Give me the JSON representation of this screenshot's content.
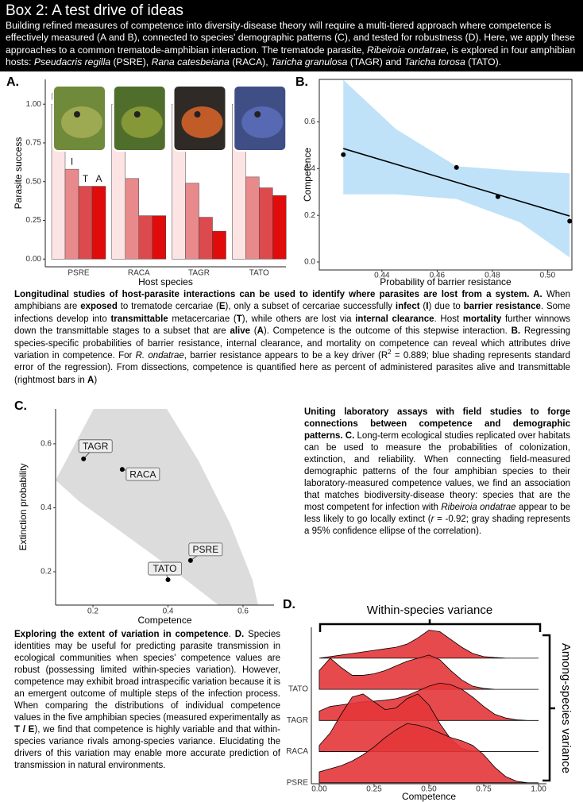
{
  "header": {
    "title": "Box 2: A test drive of ideas",
    "intro": [
      {
        "text": "Building refined measures of competence into diversity-disease theory will require a multi-tiered approach where competence is effectively measured (A and B), connected to species' demographic patterns (C), and tested for robustness (D). Here, we apply these approaches to a common trematode-amphibian interaction. The trematode parasite, "
      },
      {
        "text": "Ribeiroia ondatrae",
        "style": "i"
      },
      {
        "text": ", is explored in four amphibian hosts: "
      },
      {
        "text": "Pseudacris regilla",
        "style": "i"
      },
      {
        "text": " (PSRE), "
      },
      {
        "text": "Rana catesbeiana",
        "style": "i"
      },
      {
        "text": " (RACA), "
      },
      {
        "text": "Taricha granulosa",
        "style": "i"
      },
      {
        "text": " (TAGR) and "
      },
      {
        "text": "Taricha torosa",
        "style": "i"
      },
      {
        "text": " (TATO)."
      }
    ]
  },
  "chart_data": [
    {
      "type": "bar",
      "label": "A.",
      "xlabel": "Host species",
      "ylabel": "Parasite success",
      "categories": [
        "PSRE",
        "RACA",
        "TAGR",
        "TATO"
      ],
      "series": [
        {
          "name": "E",
          "color": "#fde4e4",
          "values": [
            1.0,
            1.0,
            1.0,
            1.0
          ]
        },
        {
          "name": "I",
          "color": "#e8898c",
          "values": [
            0.58,
            0.52,
            0.49,
            0.53
          ]
        },
        {
          "name": "T",
          "color": "#dc4a4e",
          "values": [
            0.47,
            0.28,
            0.27,
            0.46
          ]
        },
        {
          "name": "A",
          "color": "#e00b0b",
          "values": [
            0.47,
            0.28,
            0.18,
            0.41
          ]
        }
      ],
      "ylim": [
        -0.05,
        1.16
      ],
      "yticks": [
        {
          "value": 0,
          "label": "0.00"
        },
        0.25,
        {
          "value": 0.5,
          "label": "0.50"
        },
        0.75,
        {
          "value": 1,
          "label": "1.00"
        }
      ]
    },
    {
      "type": "scatter",
      "label": "B.",
      "xlabel": "Probability of barrier resistance",
      "ylabel": "Competence",
      "x": [
        0.426,
        0.467,
        0.482,
        0.508
      ],
      "values": [
        0.46,
        0.405,
        0.28,
        0.175
      ],
      "color": "#000000",
      "fit": {
        "x": [
          0.426,
          0.508
        ],
        "values": [
          0.486,
          0.197
        ],
        "color": "#000000"
      },
      "band": {
        "x": [
          0.426,
          0.445,
          0.467,
          0.49,
          0.508
        ],
        "upper": [
          0.78,
          0.57,
          0.41,
          0.39,
          0.38
        ],
        "lower": [
          0.29,
          0.29,
          0.27,
          0.17,
          0.02
        ],
        "color": "#bfe2f8"
      },
      "xlim": [
        0.4173,
        0.5088
      ],
      "ylim": [
        -0.034,
        0.782
      ],
      "xticks": [
        0.44,
        0.46,
        0.48,
        {
          "value": 0.5,
          "label": "0.50"
        }
      ],
      "yticks": [
        {
          "value": 0,
          "label": "0.0"
        },
        0.2,
        0.4,
        0.6
      ]
    },
    {
      "type": "scatter",
      "label": "C.",
      "xlabel": "Competence",
      "ylabel": "Extinction probability",
      "categories": [
        "TAGR",
        "RACA",
        "PSRE",
        "TATO"
      ],
      "x": [
        0.175,
        0.278,
        0.46,
        0.4
      ],
      "values": [
        0.553,
        0.52,
        0.235,
        0.175
      ],
      "color": "#000000",
      "band": {
        "x": [
          0.1005,
          0.202,
          0.397,
          0.481,
          0.566,
          0.625,
          0.64,
          0.534,
          0.407,
          0.27,
          0.164
        ],
        "y": [
          0.486,
          0.709,
          0.709,
          0.548,
          0.349,
          0.175,
          0.096,
          0.096,
          0.212,
          0.329,
          0.419
        ],
        "color": "#dcdcdc"
      },
      "xlim": [
        0.1005,
        0.6825
      ],
      "ylim": [
        0.0957,
        0.709
      ],
      "xticks": [
        0.2,
        0.4,
        0.6
      ],
      "yticks": [
        0.2,
        0.4,
        0.6
      ]
    },
    {
      "type": "ridgeline",
      "label": "D.",
      "xlabel": "Competence",
      "annotations": [
        "Within-species variance",
        "Among-species variance"
      ],
      "categories": [
        "PSRE",
        "RACA",
        "TAGR",
        "TATO",
        null
      ],
      "color": "#e4363a",
      "x": [
        0,
        0.05,
        0.1,
        0.15,
        0.2,
        0.25,
        0.3,
        0.35,
        0.4,
        0.45,
        0.5,
        0.55,
        0.6,
        0.65,
        0.7,
        0.75,
        0.8,
        0.85,
        0.9,
        0.95,
        1.0
      ],
      "densities": [
        [
          0.35,
          0.45,
          0.55,
          0.7,
          0.9,
          1.15,
          1.45,
          1.7,
          1.9,
          1.85,
          1.75,
          1.6,
          1.45,
          1.35,
          1.2,
          0.9,
          0.5,
          0.2,
          0.05,
          0,
          0
        ],
        [
          0.2,
          0.6,
          1.2,
          1.75,
          1.85,
          1.6,
          1.35,
          1.4,
          1.7,
          1.85,
          1.5,
          0.9,
          0.4,
          0.1,
          0.02,
          0,
          0,
          0,
          0,
          0,
          0
        ],
        [
          0.3,
          0.45,
          0.5,
          0.55,
          0.6,
          0.62,
          0.65,
          0.7,
          0.8,
          0.95,
          1.1,
          1.2,
          1.15,
          1.0,
          0.75,
          0.45,
          0.2,
          0.08,
          0.02,
          0,
          0
        ],
        [
          0.6,
          1.0,
          0.7,
          0.45,
          0.45,
          0.5,
          0.6,
          0.75,
          0.9,
          1.0,
          1.1,
          0.95,
          0.6,
          0.3,
          0.1,
          0.03,
          0,
          0,
          0,
          0,
          0
        ],
        [
          0,
          0.05,
          0.1,
          0.15,
          0.2,
          0.25,
          0.3,
          0.35,
          0.45,
          0.65,
          0.9,
          0.85,
          0.6,
          0.35,
          0.15,
          0.05,
          0.02,
          0,
          0,
          0,
          0
        ]
      ],
      "xlim": [
        -0.036,
        1.036
      ],
      "ylim": [
        -0.03,
        4.99
      ],
      "xticks": [
        {
          "value": 0,
          "label": "0.00"
        },
        0.25,
        {
          "value": 0.5,
          "label": "0.50"
        },
        0.75,
        {
          "value": 1,
          "label": "1.00"
        }
      ]
    }
  ],
  "captions": [
    [
      {
        "text": "Longitudinal studies of host-parasite interactions can be used to identify where parasites are lost from a system. A.",
        "style": "b"
      },
      {
        "text": " When amphibians are "
      },
      {
        "text": "exposed",
        "style": "b"
      },
      {
        "text": " to trematode cercariae ("
      },
      {
        "text": "E",
        "style": "b"
      },
      {
        "text": "), only a subset of cercariae successfully "
      },
      {
        "text": "infect",
        "style": "b"
      },
      {
        "text": " ("
      },
      {
        "text": "I",
        "style": "b"
      },
      {
        "text": ") due to "
      },
      {
        "text": "barrier resistance",
        "style": "b"
      },
      {
        "text": ". Some infections develop into "
      },
      {
        "text": "transmittable",
        "style": "b"
      },
      {
        "text": " metacercariae ("
      },
      {
        "text": "T",
        "style": "b"
      },
      {
        "text": "), while others are lost via "
      },
      {
        "text": "internal clearance",
        "style": "b"
      },
      {
        "text": ". Host "
      },
      {
        "text": "mortality",
        "style": "b"
      },
      {
        "text": " further winnows down the transmittable stages to a subset that are "
      },
      {
        "text": "alive",
        "style": "b"
      },
      {
        "text": " ("
      },
      {
        "text": "A",
        "style": "b"
      },
      {
        "text": "). Competence is the outcome of this stepwise interaction. "
      },
      {
        "text": "B.",
        "style": "b"
      },
      {
        "text": " Regressing species-specific probabilities of barrier resistance, internal clearance, and mortality on competence can reveal which attributes drive variation in competence. For "
      },
      {
        "text": "R. ondatrae",
        "style": "i"
      },
      {
        "text": ", barrier resistance appears to be a key driver (R"
      },
      {
        "text": "2",
        "style": "sup"
      },
      {
        "text": " = 0.889; blue shading represents standard error of the regression). From dissections, competence is quantified here as percent of administered parasites alive and transmittable (rightmost bars in "
      },
      {
        "text": "A",
        "style": "b"
      },
      {
        "text": ")"
      }
    ],
    [
      {
        "text": "Uniting laboratory assays with field studies to forge connections between competence and demographic patterns. C.",
        "style": "b"
      },
      {
        "text": " Long-term ecological studies replicated over habitats can be used to measure the probabilities of colonization, extinction, and reliability. When connecting field-measured demographic patterns of the four amphibian species to their laboratory-measured competence values, we find an association that matches biodiversity-disease theory: species that are the most competent for infection with "
      },
      {
        "text": "Ribeiroia ondatrae",
        "style": "i"
      },
      {
        "text": " appear to be less likely to go locally extinct ("
      },
      {
        "text": "r",
        "style": "i"
      },
      {
        "text": " = -0.92; gray shading represents a 95% confidence ellipse of the correlation)."
      }
    ],
    [
      {
        "text": "Exploring the extent of variation in competence",
        "style": "b"
      },
      {
        "text": ". "
      },
      {
        "text": "D.",
        "style": "b"
      },
      {
        "text": " Species identities may be useful for predicting parasite transmission in ecological communities when species' competence values are robust (possessing limited within-species variation). However, competence may exhibit broad intraspecific variation because it is an emergent outcome of multiple steps of the infection process. When comparing the distributions of individual competence values in the five amphibian species (measured experimentally as "
      },
      {
        "text": "T / E",
        "style": "b"
      },
      {
        "text": "), we find that competence is highly variable and that within-species variance rivals among-species variance. Elucidating the drivers of this variation may enable more accurate prediction of transmission in natural environments."
      }
    ]
  ]
}
